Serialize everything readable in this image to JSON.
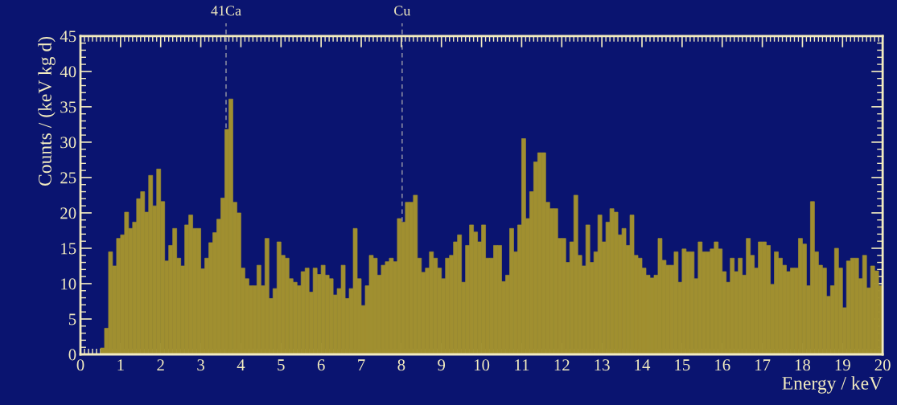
{
  "chart_data": {
    "type": "histogram",
    "xlabel": "Energy / keV",
    "ylabel": "Counts / (keV kg d)",
    "bins": [
      0,
      0.1,
      0.2,
      0.3,
      0.4,
      0.5,
      0.6,
      0.7,
      0.8,
      0.9,
      1,
      1.1,
      1.2,
      1.3,
      1.4,
      1.5,
      1.6,
      1.7,
      1.8,
      1.9,
      2,
      2.1,
      2.2,
      2.3,
      2.4,
      2.5,
      2.6,
      2.7,
      2.8,
      2.9,
      3,
      3.1,
      3.2,
      3.3,
      3.4,
      3.5,
      3.6,
      3.7,
      3.8,
      3.9,
      4,
      4.1,
      4.2,
      4.3,
      4.4,
      4.5,
      4.6,
      4.7,
      4.8,
      4.9,
      5,
      5.1,
      5.2,
      5.3,
      5.4,
      5.5,
      5.6,
      5.7,
      5.8,
      5.9,
      6,
      6.1,
      6.2,
      6.3,
      6.4,
      6.5,
      6.6,
      6.7,
      6.8,
      6.9,
      7,
      7.1,
      7.2,
      7.3,
      7.4,
      7.5,
      7.6,
      7.7,
      7.8,
      7.9,
      8,
      8.1,
      8.2,
      8.3,
      8.4,
      8.5,
      8.6,
      8.7,
      8.8,
      8.9,
      9,
      9.1,
      9.2,
      9.3,
      9.4,
      9.5,
      9.6,
      9.7,
      9.8,
      9.9,
      10,
      10.1,
      10.2,
      10.3,
      10.4,
      10.5,
      10.6,
      10.7,
      10.8,
      10.9,
      11,
      11.1,
      11.2,
      11.3,
      11.4,
      11.5,
      11.6,
      11.7,
      11.8,
      11.9,
      12,
      12.1,
      12.2,
      12.3,
      12.4,
      12.5,
      12.6,
      12.7,
      12.8,
      12.9,
      13,
      13.1,
      13.2,
      13.3,
      13.4,
      13.5,
      13.6,
      13.7,
      13.8,
      13.9,
      14,
      14.1,
      14.2,
      14.3,
      14.4,
      14.5,
      14.6,
      14.7,
      14.8,
      14.9,
      15,
      15.1,
      15.2,
      15.3,
      15.4,
      15.5,
      15.6,
      15.7,
      15.8,
      15.9,
      16,
      16.1,
      16.2,
      16.3,
      16.4,
      16.5,
      16.6,
      16.7,
      16.8,
      16.9,
      17,
      17.1,
      17.2,
      17.3,
      17.4,
      17.5,
      17.6,
      17.7,
      17.8,
      17.9,
      18,
      18.1,
      18.2,
      18.3,
      18.4,
      18.5,
      18.6,
      18.7,
      18.8,
      18.9,
      19,
      19.1,
      19.2,
      19.3,
      19.4,
      19.5,
      19.6,
      19.7,
      19.8,
      19.9,
      20
    ],
    "series": [
      {
        "type": "histogram",
        "color": "#a08f30",
        "values": [
          0,
          0,
          0,
          0,
          0,
          0.9,
          3.7,
          14.5,
          12.5,
          16.4,
          16.9,
          20.1,
          17.8,
          18.7,
          22.0,
          23.0,
          20.1,
          25.3,
          21.0,
          26.2,
          21.6,
          13.2,
          15.4,
          17.8,
          13.6,
          12.5,
          18.3,
          19.7,
          17.8,
          17.8,
          12.1,
          13.6,
          15.8,
          17.2,
          19.1,
          22.1,
          31.8,
          36.1,
          21.5,
          20.0,
          12.2,
          10.7,
          9.7,
          9.7,
          12.6,
          9.7,
          16.4,
          7.9,
          9.3,
          15.9,
          14.0,
          13.6,
          10.7,
          10.2,
          9.7,
          11.7,
          12.2,
          8.8,
          12.2,
          11.3,
          12.6,
          11.2,
          10.7,
          8.4,
          9.3,
          12.6,
          7.9,
          9.3,
          17.8,
          10.7,
          6.9,
          9.7,
          14.0,
          13.6,
          11.2,
          12.6,
          13.1,
          13.6,
          13.1,
          19.2,
          18.7,
          21.5,
          21.5,
          22.5,
          13.6,
          11.6,
          12.2,
          14.5,
          13.6,
          12.2,
          10.7,
          13.6,
          14.0,
          15.9,
          16.9,
          10.2,
          15.4,
          18.3,
          17.3,
          15.9,
          18.3,
          13.6,
          13.6,
          15.4,
          15.4,
          10.3,
          11.2,
          17.8,
          14.5,
          18.3,
          30.5,
          19.2,
          23.0,
          27.2,
          28.5,
          28.5,
          21.5,
          20.6,
          20.6,
          16.4,
          16.4,
          13.0,
          15.9,
          22.5,
          14.0,
          12.5,
          18.3,
          13.0,
          14.5,
          19.7,
          15.9,
          18.7,
          20.6,
          20.1,
          16.9,
          17.8,
          15.4,
          19.7,
          14.0,
          13.6,
          12.2,
          11.2,
          10.8,
          11.2,
          16.4,
          13.3,
          12.6,
          12.6,
          14.5,
          10.2,
          14.9,
          14.5,
          14.5,
          10.7,
          15.9,
          14.5,
          14.5,
          14.9,
          15.9,
          14.9,
          11.7,
          10.2,
          13.6,
          11.7,
          13.6,
          11.2,
          16.4,
          14.0,
          12.2,
          15.9,
          15.9,
          15.4,
          9.9,
          14.5,
          13.6,
          12.6,
          11.7,
          12.2,
          12.2,
          16.4,
          15.6,
          9.7,
          21.6,
          14.5,
          12.6,
          12.2,
          8.2,
          9.7,
          15.0,
          12.2,
          6.6,
          13.2,
          13.6,
          13.6,
          10.7,
          14.0,
          9.4,
          12.5,
          11.8,
          9.7
        ]
      }
    ],
    "xlim": [
      0,
      20
    ],
    "xticks": [
      0,
      1,
      2,
      3,
      4,
      5,
      6,
      7,
      8,
      9,
      10,
      11,
      12,
      13,
      14,
      15,
      16,
      17,
      18,
      19,
      20
    ],
    "ylim": [
      0,
      45
    ],
    "yticks": [
      0,
      5,
      10,
      15,
      20,
      25,
      30,
      35,
      40,
      45
    ],
    "ref_lines": [
      {
        "axis": "x",
        "value": 3.63,
        "label": "41Ca",
        "color": "#9a9aa8",
        "line_style": "dashed"
      },
      {
        "axis": "x",
        "value": 8.02,
        "label": "Cu",
        "color": "#9a9aa8",
        "line_style": "dashed"
      }
    ],
    "grid": false,
    "legend": false
  }
}
